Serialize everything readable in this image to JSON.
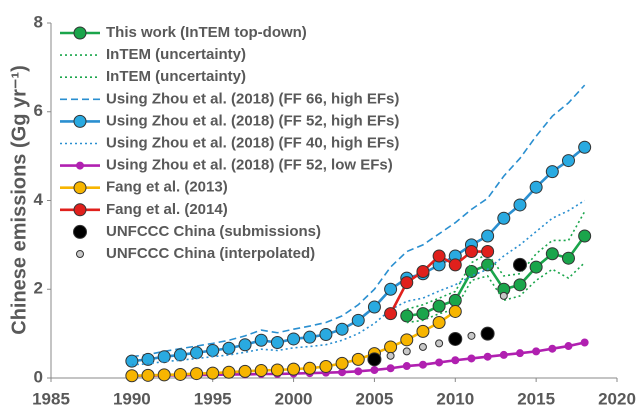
{
  "chart_data": {
    "type": "line",
    "ylabel": "Chinese emissions (Gg yr⁻¹)",
    "xlim": [
      1985,
      2020
    ],
    "xticks": [
      1985,
      1990,
      1995,
      2000,
      2005,
      2010,
      2015,
      2020
    ],
    "ylim": [
      0,
      8
    ],
    "yticks": [
      0,
      2,
      4,
      6,
      8
    ],
    "grid": false,
    "legend": "upper left",
    "series": [
      {
        "name": "This work (InTEM top-down)",
        "color": "#1aa54b",
        "style": "solid",
        "marker": "circle",
        "x": [
          2007,
          2008,
          2009,
          2010,
          2011,
          2012,
          2013,
          2014,
          2015,
          2016,
          2017,
          2018
        ],
        "values": [
          1.4,
          1.45,
          1.62,
          1.75,
          2.4,
          2.55,
          2.0,
          2.1,
          2.5,
          2.8,
          2.7,
          3.2
        ]
      },
      {
        "name": "InTEM (uncertainty)",
        "color": "#1aa54b",
        "style": "dotted",
        "marker": "none",
        "x": [
          2007,
          2008,
          2009,
          2010,
          2011,
          2012,
          2013,
          2014,
          2015,
          2016,
          2017,
          2018
        ],
        "values": [
          1.55,
          1.65,
          1.8,
          1.95,
          2.6,
          2.8,
          2.3,
          2.35,
          2.8,
          3.1,
          3.1,
          3.75
        ]
      },
      {
        "name": "InTEM (uncertainty)",
        "color": "#1aa54b",
        "style": "dotted",
        "marker": "none",
        "x": [
          2007,
          2008,
          2009,
          2010,
          2011,
          2012,
          2013,
          2014,
          2015,
          2016,
          2017,
          2018
        ],
        "values": [
          1.25,
          1.3,
          1.45,
          1.55,
          2.2,
          2.3,
          1.75,
          1.85,
          2.2,
          2.45,
          2.25,
          2.6
        ]
      },
      {
        "name": "Using Zhou et al. (2018) (FF 66, high EFs)",
        "color": "#29aae1",
        "style": "dashed",
        "marker": "none",
        "x": [
          1990,
          1991,
          1992,
          1993,
          1994,
          1995,
          1996,
          1997,
          1998,
          1999,
          2000,
          2001,
          2002,
          2003,
          2004,
          2005,
          2006,
          2007,
          2008,
          2009,
          2010,
          2011,
          2012,
          2013,
          2014,
          2015,
          2016,
          2017,
          2018
        ],
        "values": [
          0.48,
          0.53,
          0.6,
          0.66,
          0.72,
          0.78,
          0.85,
          0.95,
          1.08,
          1.02,
          1.1,
          1.17,
          1.25,
          1.4,
          1.65,
          2.0,
          2.5,
          2.85,
          3.0,
          3.25,
          3.5,
          3.8,
          4.05,
          4.55,
          4.95,
          5.45,
          5.9,
          6.2,
          6.6
        ]
      },
      {
        "name": "Using Zhou et al. (2018) (FF 52, high EFs)",
        "color": "#29aae1",
        "style": "solid",
        "marker": "circle",
        "x": [
          1990,
          1991,
          1992,
          1993,
          1994,
          1995,
          1996,
          1997,
          1998,
          1999,
          2000,
          2001,
          2002,
          2003,
          2004,
          2005,
          2006,
          2007,
          2008,
          2009,
          2010,
          2011,
          2012,
          2013,
          2014,
          2015,
          2016,
          2017,
          2018
        ],
        "values": [
          0.38,
          0.42,
          0.48,
          0.52,
          0.57,
          0.62,
          0.67,
          0.75,
          0.85,
          0.8,
          0.88,
          0.92,
          0.98,
          1.1,
          1.3,
          1.6,
          2.0,
          2.25,
          2.35,
          2.55,
          2.75,
          3.0,
          3.2,
          3.6,
          3.9,
          4.3,
          4.65,
          4.9,
          5.2
        ]
      },
      {
        "name": "Using Zhou et al. (2018) (FF 40, high EFs)",
        "color": "#29aae1",
        "style": "dotted",
        "marker": "none",
        "x": [
          1990,
          1991,
          1992,
          1993,
          1994,
          1995,
          1996,
          1997,
          1998,
          1999,
          2000,
          2001,
          2002,
          2003,
          2004,
          2005,
          2006,
          2007,
          2008,
          2009,
          2010,
          2011,
          2012,
          2013,
          2014,
          2015,
          2016,
          2017,
          2018
        ],
        "values": [
          0.3,
          0.32,
          0.37,
          0.4,
          0.44,
          0.48,
          0.52,
          0.58,
          0.65,
          0.62,
          0.68,
          0.71,
          0.75,
          0.85,
          1.0,
          1.23,
          1.54,
          1.73,
          1.8,
          1.96,
          2.1,
          2.3,
          2.45,
          2.75,
          3.0,
          3.3,
          3.6,
          3.77,
          4.0
        ]
      },
      {
        "name": "Using Zhou et al. (2018) (FF 52, low EFs)",
        "color": "#b020b0",
        "style": "solid",
        "marker": "small",
        "x": [
          1990,
          1991,
          1992,
          1993,
          1994,
          1995,
          1996,
          1997,
          1998,
          1999,
          2000,
          2001,
          2002,
          2003,
          2004,
          2005,
          2006,
          2007,
          2008,
          2009,
          2010,
          2011,
          2012,
          2013,
          2014,
          2015,
          2016,
          2017,
          2018
        ],
        "values": [
          0.05,
          0.05,
          0.06,
          0.06,
          0.07,
          0.07,
          0.08,
          0.08,
          0.09,
          0.09,
          0.1,
          0.11,
          0.12,
          0.13,
          0.15,
          0.18,
          0.22,
          0.27,
          0.3,
          0.35,
          0.4,
          0.44,
          0.48,
          0.52,
          0.56,
          0.6,
          0.66,
          0.72,
          0.8
        ]
      },
      {
        "name": "Fang et al. (2013)",
        "color": "#f7b500",
        "style": "solid",
        "marker": "circle",
        "x": [
          1990,
          1991,
          1992,
          1993,
          1994,
          1995,
          1996,
          1997,
          1998,
          1999,
          2000,
          2001,
          2002,
          2003,
          2004,
          2005,
          2006,
          2007,
          2008,
          2009,
          2010
        ],
        "values": [
          0.05,
          0.06,
          0.07,
          0.08,
          0.1,
          0.11,
          0.13,
          0.15,
          0.17,
          0.18,
          0.2,
          0.22,
          0.26,
          0.33,
          0.42,
          0.55,
          0.7,
          0.86,
          1.05,
          1.25,
          1.5
        ]
      },
      {
        "name": "Fang et al. (2014)",
        "color": "#e0201c",
        "style": "solid",
        "marker": "circle",
        "x": [
          2006,
          2007,
          2008,
          2009,
          2010,
          2011,
          2012
        ],
        "values": [
          1.45,
          2.15,
          2.4,
          2.75,
          2.55,
          2.85,
          2.85
        ]
      },
      {
        "name": "UNFCCC China (submissions)",
        "color": "#000000",
        "style": "none",
        "marker": "big",
        "x": [
          2005,
          2010,
          2012,
          2014
        ],
        "values": [
          0.42,
          0.88,
          1.0,
          2.55
        ]
      },
      {
        "name": "UNFCCC China (interpolated)",
        "color": "#c8c8c8",
        "style": "none",
        "marker": "small",
        "x": [
          2006,
          2007,
          2008,
          2009,
          2011,
          2013
        ],
        "values": [
          0.5,
          0.6,
          0.7,
          0.78,
          0.95,
          1.85
        ]
      }
    ]
  }
}
